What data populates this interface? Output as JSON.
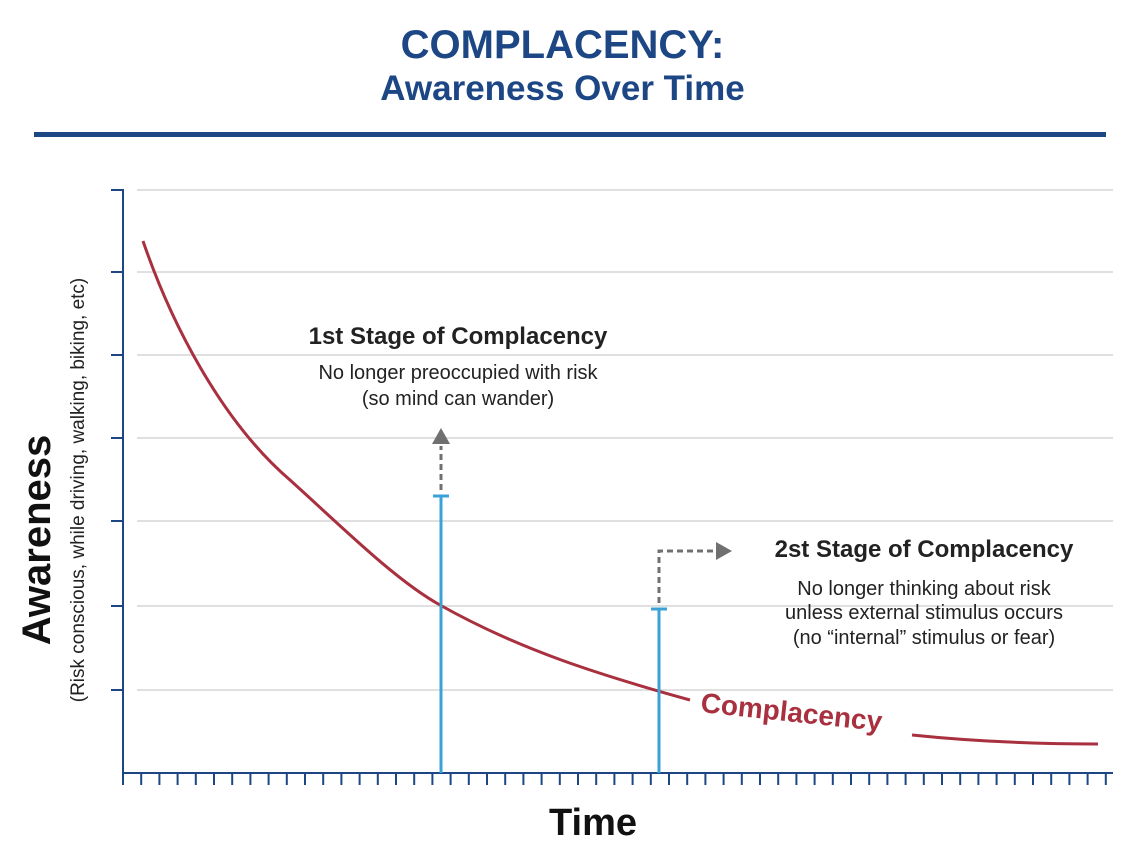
{
  "header": {
    "title": "COMPLACENCY:",
    "subtitle": "Awareness Over Time"
  },
  "axes": {
    "y_label": "Awareness",
    "y_sublabel": "(Risk conscious, while driving, walking, biking, etc)",
    "x_label": "Time"
  },
  "curve": {
    "label": "Complacency",
    "color": "#a8303f"
  },
  "stage1": {
    "title": "1st Stage of Complacency",
    "line1": "No longer preoccupied with risk",
    "line2": "(so mind can wander)"
  },
  "stage2": {
    "title": "2st Stage of Complacency",
    "line1": "No longer thinking about risk",
    "line2": "unless external stimulus occurs",
    "line3": "(no “internal” stimulus or fear)"
  },
  "colors": {
    "brand_blue": "#1d4684",
    "marker_blue": "#3ba1d6",
    "arrow_gray": "#707070",
    "grid_gray": "#d6d6d6"
  }
}
